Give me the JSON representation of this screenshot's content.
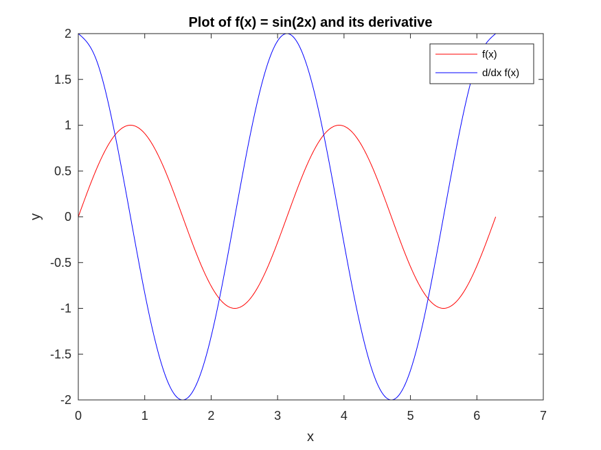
{
  "chart_data": {
    "type": "line",
    "title": "Plot of f(x) = sin(2x) and its derivative",
    "xlabel": "x",
    "ylabel": "y",
    "xlim": [
      0,
      7
    ],
    "ylim": [
      -2,
      2
    ],
    "xticks": [
      0,
      1,
      2,
      3,
      4,
      5,
      6,
      7
    ],
    "yticks": [
      -2,
      -1.5,
      -1,
      -0.5,
      0,
      0.5,
      1,
      1.5,
      2
    ],
    "grid": false,
    "legend_position": "top-right",
    "x": [
      0,
      0.2618,
      0.5236,
      0.7854,
      1.0472,
      1.309,
      1.5708,
      1.8326,
      2.0944,
      2.3562,
      2.618,
      2.8798,
      3.1416,
      3.4034,
      3.6652,
      3.927,
      4.1888,
      4.4506,
      4.7124,
      4.9742,
      5.236,
      5.4978,
      5.7596,
      6.0214,
      6.2832
    ],
    "series": [
      {
        "name": "f(x)",
        "color": "#ff0000",
        "values": [
          0,
          0.5,
          0.866,
          1,
          0.866,
          0.5,
          0,
          -0.5,
          -0.866,
          -1,
          -0.866,
          -0.5,
          0,
          0.5,
          0.866,
          1,
          0.866,
          0.5,
          0,
          -0.5,
          -0.866,
          -1,
          -0.866,
          -0.5,
          0
        ]
      },
      {
        "name": "d/dx f(x)",
        "color": "#0000ff",
        "values": [
          2,
          1.732,
          1,
          0,
          -1,
          -1.732,
          -2,
          -1.732,
          -1,
          0,
          1,
          1.732,
          2,
          1.732,
          1,
          0,
          -1,
          -1.732,
          -2,
          -1.732,
          -1,
          0,
          1,
          1.732,
          2
        ]
      }
    ]
  }
}
